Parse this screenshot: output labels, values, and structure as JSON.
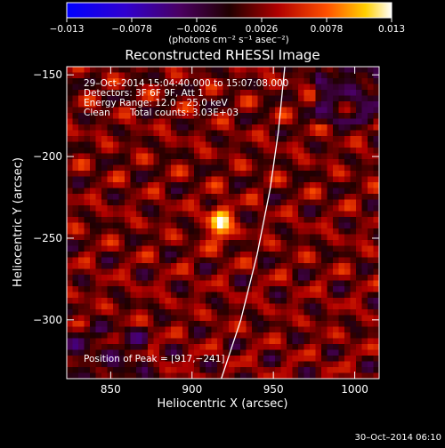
{
  "chart_data": {
    "type": "heatmap",
    "title": "Reconstructed RHESSI Image",
    "xlabel": "Heliocentric X (arcsec)",
    "ylabel": "Heliocentric Y (arcsec)",
    "xlim": [
      823,
      1015
    ],
    "ylim": [
      -336,
      -145
    ],
    "xticks": [
      850,
      900,
      950,
      1000
    ],
    "xtick_labels": [
      "850",
      "900",
      "950",
      "1000"
    ],
    "yticks": [
      -150,
      -200,
      -250,
      -300
    ],
    "ytick_labels": [
      "−150",
      "−200",
      "−250",
      "−300"
    ],
    "colorbar": {
      "min": -0.013,
      "max": 0.013,
      "ticks": [
        -0.013,
        -0.0078,
        -0.0026,
        0.0026,
        0.0078,
        0.013
      ],
      "tick_labels": [
        "−0.013",
        "−0.0078",
        "−0.0026",
        "0.0026",
        "0.0078",
        "0.013"
      ],
      "unit_label": "(photons cm⁻² s⁻¹ asec⁻²)"
    },
    "annotations": {
      "time_range": "29–Oct–2014 15:04:40.000 to 15:07:08.000",
      "detectors": "Detectors: 3F 6F 9F, Att 1",
      "energy_range": "Energy Range: 12.0 – 25.0 keV",
      "clean_label": "Clean",
      "total_counts": "Total counts: 3.03E+03",
      "peak_position": "Position of Peak = [917,−241]"
    },
    "peak": {
      "x": 917,
      "y": -241,
      "value": 0.013
    },
    "limb_curve": [
      [
        918,
        -336
      ],
      [
        930,
        -300
      ],
      [
        940,
        -260
      ],
      [
        948,
        -220
      ],
      [
        953,
        -185
      ],
      [
        957,
        -145
      ]
    ],
    "colormap": "rhessi-blue-purple-red-yellow-white"
  },
  "footer": {
    "timestamp": "30–Oct–2014 06:10"
  }
}
